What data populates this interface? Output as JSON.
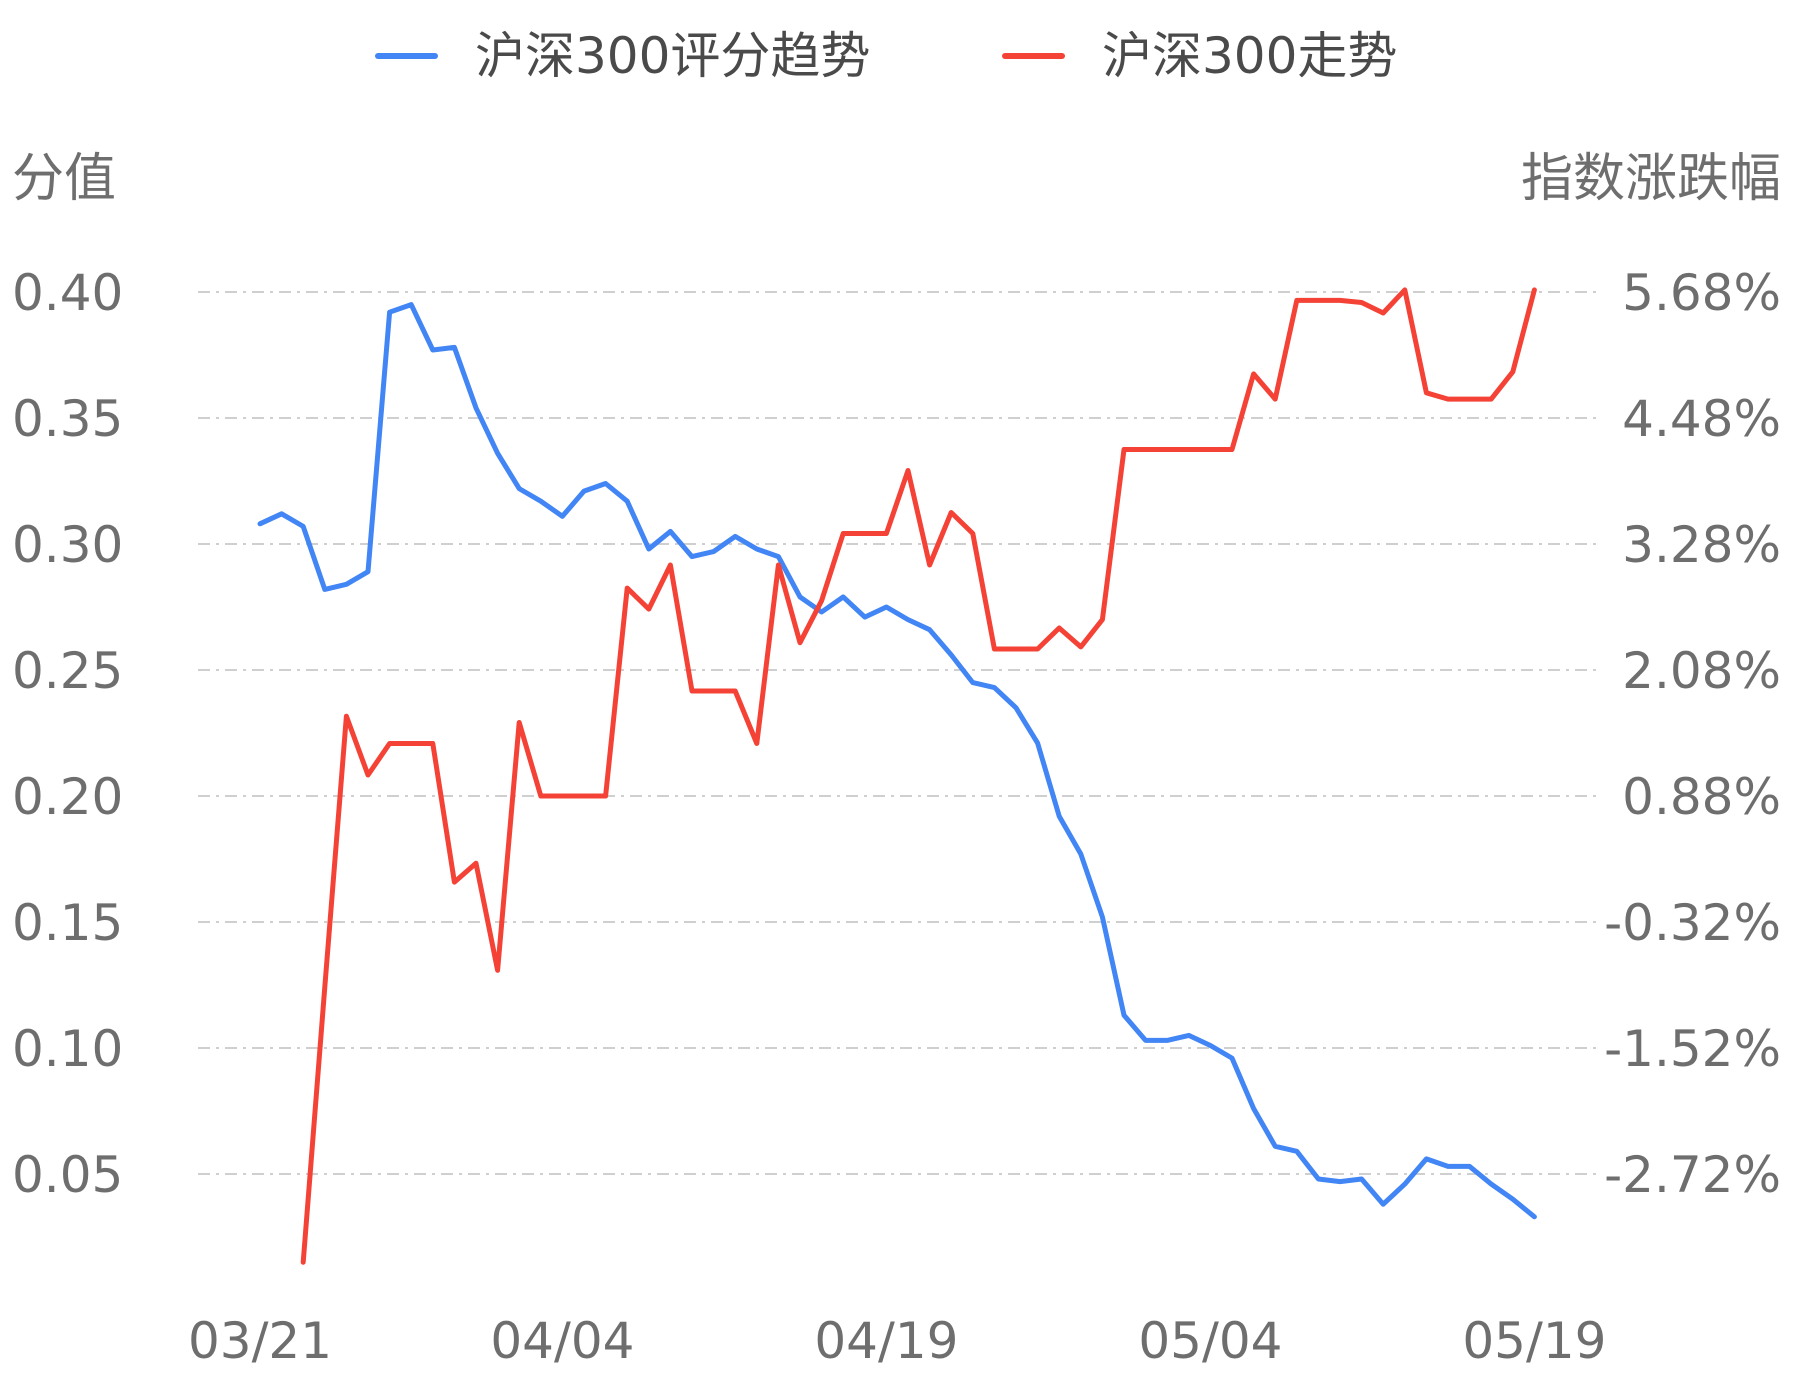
{
  "chart_data": {
    "type": "line",
    "legend": {
      "position": "top-center"
    },
    "left_axis": {
      "title": "分值",
      "ticks": [
        "0.40",
        "0.35",
        "0.30",
        "0.25",
        "0.20",
        "0.15",
        "0.10",
        "0.05"
      ],
      "range": [
        0.0,
        0.4
      ]
    },
    "right_axis": {
      "title": "指数涨跌幅",
      "ticks": [
        "5.68%",
        "4.48%",
        "3.28%",
        "2.08%",
        "0.88%",
        "-0.32%",
        "-1.52%",
        "-2.72%"
      ],
      "range": [
        -3.92,
        5.68
      ]
    },
    "x_axis": {
      "tick_labels": [
        "03/21",
        "04/04",
        "04/19",
        "05/04",
        "05/19"
      ],
      "tick_index": [
        0,
        14,
        29,
        44,
        59
      ]
    },
    "grid": true,
    "series": [
      {
        "name": "沪深300评分趋势",
        "axis": "left",
        "color": "#4285f4",
        "values": [
          0.308,
          0.312,
          0.307,
          0.282,
          0.284,
          0.289,
          0.392,
          0.395,
          0.377,
          0.378,
          0.354,
          0.336,
          0.322,
          0.317,
          0.311,
          0.321,
          0.324,
          0.317,
          0.298,
          0.305,
          0.295,
          0.297,
          0.303,
          0.298,
          0.295,
          0.279,
          0.273,
          0.279,
          0.271,
          0.275,
          0.27,
          0.266,
          0.256,
          0.245,
          0.243,
          0.235,
          0.221,
          0.192,
          0.177,
          0.152,
          0.113,
          0.103,
          0.103,
          0.105,
          0.101,
          0.096,
          0.076,
          0.061,
          0.059,
          0.048,
          0.047,
          0.048,
          0.038,
          0.046,
          0.056,
          0.053,
          0.053,
          0.046,
          0.04,
          0.033
        ]
      },
      {
        "name": "沪深300走势",
        "axis": "right",
        "color": "#f44336",
        "values": [
          null,
          null,
          -3.56,
          -0.94,
          1.64,
          1.08,
          1.38,
          1.38,
          1.38,
          0.06,
          0.24,
          -0.78,
          1.58,
          0.88,
          0.88,
          0.88,
          0.88,
          2.86,
          2.66,
          3.08,
          1.88,
          1.88,
          1.88,
          1.38,
          3.08,
          2.34,
          2.74,
          3.38,
          3.38,
          3.38,
          3.98,
          3.08,
          3.58,
          3.38,
          2.28,
          2.28,
          2.28,
          2.48,
          2.3,
          2.56,
          4.18,
          4.18,
          4.18,
          4.18,
          4.18,
          4.18,
          4.9,
          4.66,
          5.6,
          5.6,
          5.6,
          5.58,
          5.48,
          5.7,
          4.72,
          4.66,
          4.66,
          4.66,
          4.92,
          5.7
        ]
      }
    ]
  }
}
